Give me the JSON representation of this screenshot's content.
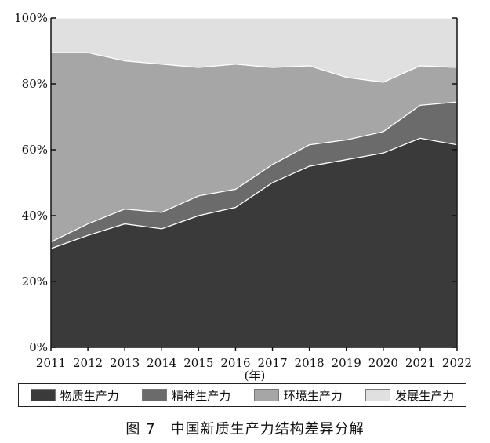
{
  "chart_data": {
    "type": "area",
    "stacked": true,
    "categories": [
      "2011",
      "2012",
      "2013",
      "2014",
      "2015",
      "2016",
      "2017",
      "2018",
      "2019",
      "2020",
      "2021",
      "2022"
    ],
    "x_unit_label": "(年)",
    "y_ticks": [
      "0%",
      "20%",
      "40%",
      "60%",
      "80%",
      "100%"
    ],
    "ylim": [
      0,
      100
    ],
    "series": [
      {
        "name": "物质生产力",
        "color": "#3a3a3a",
        "values": [
          30,
          34,
          37.5,
          36,
          40,
          42.5,
          50,
          55,
          57,
          59,
          63.5,
          61.5
        ]
      },
      {
        "name": "精神生产力",
        "color": "#6b6b6b",
        "values": [
          2,
          3.5,
          4.5,
          5,
          6,
          5.5,
          5.5,
          6.5,
          6,
          6.5,
          10,
          13
        ]
      },
      {
        "name": "环境生产力",
        "color": "#a6a6a6",
        "values": [
          57.5,
          52,
          45,
          45,
          39,
          38,
          29.5,
          24,
          19,
          15,
          12,
          10.5
        ]
      },
      {
        "name": "发展生产力",
        "color": "#e0e0e0",
        "values": [
          10.5,
          10.5,
          13,
          14,
          15,
          14,
          15,
          14.5,
          18,
          19.5,
          14.5,
          15
        ]
      }
    ],
    "legend_position": "bottom",
    "grid": false
  },
  "caption": "图 7　中国新质生产力结构差异分解"
}
